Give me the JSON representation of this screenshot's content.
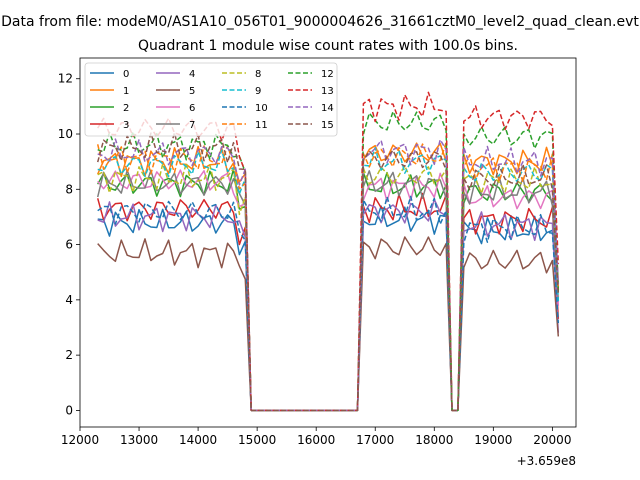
{
  "chart_data": {
    "type": "line",
    "suptitle": "Data from file: modeM0/AS1A10_056T01_9000004626_31661cztM0_level2_quad_clean.evt",
    "title": "Quadrant 1 module wise count rates with 100.0s bins.",
    "xlabel": "",
    "ylabel": "",
    "offset_label": "+3.659e8",
    "xlim": [
      12000,
      20400
    ],
    "ylim": [
      -0.6,
      12.75
    ],
    "xticks": [
      12000,
      13000,
      14000,
      15000,
      16000,
      17000,
      18000,
      19000,
      20000
    ],
    "xtick_labels": [
      "12000",
      "13000",
      "14000",
      "15000",
      "16000",
      "17000",
      "18000",
      "19000",
      "20000"
    ],
    "yticks": [
      0,
      2,
      4,
      6,
      8,
      10,
      12
    ],
    "ytick_labels": [
      "0",
      "2",
      "4",
      "6",
      "8",
      "10",
      "12"
    ],
    "grid": false,
    "legend": {
      "placement": "top-left",
      "ncol": 4
    },
    "segments": [
      {
        "start": 12300,
        "end": 14600
      },
      {
        "start": 14700,
        "end": 14800
      },
      {
        "start": 14900,
        "end": 16500
      },
      {
        "start": 16600,
        "end": 16700
      },
      {
        "start": 16800,
        "end": 18200
      },
      {
        "start": 18300,
        "end": 18400
      },
      {
        "start": 18500,
        "end": 20000
      },
      {
        "start": 20100,
        "end": 20100
      }
    ],
    "series": [
      {
        "name": "0",
        "color": "#1f77b4",
        "dash": "solid",
        "levels": [
          6.8,
          6.0,
          0.0,
          0.0,
          6.9,
          0.0,
          6.5,
          3.5
        ]
      },
      {
        "name": "1",
        "color": "#ff7f0e",
        "dash": "solid",
        "levels": [
          9.0,
          8.2,
          0.0,
          0.0,
          9.3,
          0.0,
          9.0,
          4.5
        ]
      },
      {
        "name": "2",
        "color": "#2ca02c",
        "dash": "solid",
        "levels": [
          8.2,
          7.5,
          0.0,
          0.0,
          8.1,
          0.0,
          7.9,
          4.0
        ]
      },
      {
        "name": "3",
        "color": "#d62728",
        "dash": "solid",
        "levels": [
          7.3,
          6.3,
          0.0,
          0.0,
          7.3,
          0.0,
          6.9,
          3.4
        ]
      },
      {
        "name": "4",
        "color": "#9467bd",
        "dash": "solid",
        "levels": [
          7.0,
          6.4,
          0.0,
          0.0,
          7.2,
          0.0,
          6.7,
          3.3
        ]
      },
      {
        "name": "5",
        "color": "#8c564b",
        "dash": "solid",
        "levels": [
          5.7,
          5.2,
          0.0,
          0.0,
          5.9,
          0.0,
          5.4,
          2.5
        ]
      },
      {
        "name": "6",
        "color": "#e377c2",
        "dash": "solid",
        "levels": [
          8.3,
          7.3,
          0.0,
          0.0,
          8.1,
          0.0,
          7.7,
          3.9
        ]
      },
      {
        "name": "7",
        "color": "#7f7f7f",
        "dash": "solid",
        "levels": [
          8.2,
          7.6,
          0.0,
          0.0,
          8.2,
          0.0,
          7.9,
          3.9
        ]
      },
      {
        "name": "8",
        "color": "#bcbd22",
        "dash": "dashed",
        "levels": [
          8.4,
          7.6,
          0.0,
          0.0,
          8.5,
          0.0,
          8.3,
          4.1
        ]
      },
      {
        "name": "9",
        "color": "#17becf",
        "dash": "dashed",
        "levels": [
          8.9,
          7.9,
          0.0,
          0.0,
          9.0,
          0.0,
          8.6,
          4.2
        ]
      },
      {
        "name": "10",
        "color": "#1f77b4",
        "dash": "dashed",
        "levels": [
          7.2,
          6.4,
          0.0,
          0.0,
          7.2,
          0.0,
          6.6,
          3.2
        ]
      },
      {
        "name": "11",
        "color": "#ff7f0e",
        "dash": "dashed",
        "levels": [
          9.1,
          8.2,
          0.0,
          0.0,
          9.2,
          0.0,
          8.8,
          4.4
        ]
      },
      {
        "name": "12",
        "color": "#2ca02c",
        "dash": "dashed",
        "levels": [
          9.6,
          8.7,
          0.0,
          0.0,
          10.4,
          0.0,
          9.9,
          4.8
        ]
      },
      {
        "name": "13",
        "color": "#d62728",
        "dash": "dashed",
        "levels": [
          10.2,
          9.1,
          0.0,
          0.0,
          11.0,
          0.0,
          10.6,
          5.0
        ]
      },
      {
        "name": "14",
        "color": "#9467bd",
        "dash": "dashed",
        "levels": [
          9.3,
          8.4,
          0.0,
          0.0,
          9.4,
          0.0,
          9.0,
          4.4
        ]
      },
      {
        "name": "15",
        "color": "#8c564b",
        "dash": "dashed",
        "levels": [
          9.5,
          8.6,
          0.0,
          0.0,
          9.1,
          0.0,
          8.4,
          4.2
        ]
      }
    ]
  }
}
